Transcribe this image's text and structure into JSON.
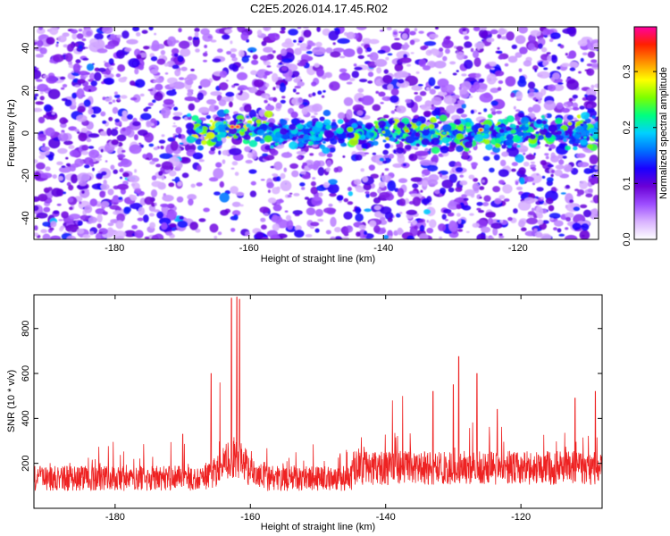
{
  "title": "C2E5.2026.014.17.45.R02",
  "chart_data": [
    {
      "type": "heatmap",
      "panel": "spectrogram",
      "xlabel": "Height of straight line (km)",
      "ylabel": "Frequency (Hz)",
      "xlim": [
        -192,
        -108
      ],
      "ylim": [
        -50,
        50
      ],
      "xticks": [
        -180,
        -160,
        -140,
        -120
      ],
      "yticks": [
        -40,
        -20,
        0,
        20,
        40
      ],
      "colorbar": {
        "label": "Normalized spectral amplitude",
        "range": [
          0,
          0.38
        ],
        "ticks": [
          0.0,
          0.1,
          0.2,
          0.3
        ],
        "colormap": [
          "#ffffff",
          "#d9b3ff",
          "#9d4dff",
          "#6a00d6",
          "#1a00ff",
          "#0070ff",
          "#00d0ff",
          "#00ff80",
          "#7cff00",
          "#ffff00",
          "#ff9000",
          "#ff2000",
          "#ff00a0"
        ]
      },
      "features": [
        {
          "x_range": [
            -168,
            -157
          ],
          "freq_center": 0,
          "peak_amplitude": 0.38
        },
        {
          "x_range": [
            -145,
            -108
          ],
          "freq_center": 0,
          "peak_amplitude": 0.33
        }
      ],
      "grid": false
    },
    {
      "type": "line",
      "panel": "snr",
      "xlabel": "Height of straight line (km)",
      "ylabel": "SNR (10 * v/v)",
      "xlim": [
        -192,
        -108
      ],
      "ylim": [
        0,
        950
      ],
      "xticks": [
        -180,
        -160,
        -140,
        -120
      ],
      "yticks": [
        200,
        400,
        600,
        800
      ],
      "series": [
        {
          "color": "#ee2222",
          "baseline": 150,
          "noise_amplitude": 70,
          "peaks": [
            {
              "x": -162.8,
              "y": 935
            },
            {
              "x": -162.0,
              "y": 940
            },
            {
              "x": -161.6,
              "y": 930
            },
            {
              "x": -165.8,
              "y": 600
            },
            {
              "x": -164.5,
              "y": 560
            },
            {
              "x": -139.0,
              "y": 480
            },
            {
              "x": -137.5,
              "y": 500
            },
            {
              "x": -133.0,
              "y": 520
            },
            {
              "x": -130.0,
              "y": 550
            },
            {
              "x": -129.2,
              "y": 675
            },
            {
              "x": -126.5,
              "y": 600
            },
            {
              "x": -123.5,
              "y": 440
            },
            {
              "x": -112.0,
              "y": 490
            },
            {
              "x": -109.0,
              "y": 520
            },
            {
              "x": -170.0,
              "y": 330
            }
          ]
        }
      ],
      "grid": false
    }
  ]
}
